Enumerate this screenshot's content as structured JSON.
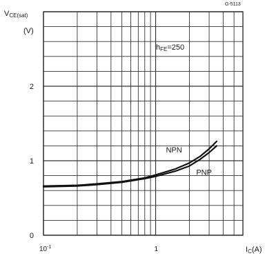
{
  "figure_id": "G-5113",
  "chart_data": {
    "type": "line",
    "ylabel": {
      "main": "V",
      "sub": "CE(sat)"
    },
    "ylabel_unit": "(V)",
    "xlabel": {
      "main": "I",
      "sub": "C",
      "unit": "(A)"
    },
    "x_scale": "log",
    "xlim": [
      0.1,
      6
    ],
    "ylim": [
      0,
      3
    ],
    "x_ticks": [
      {
        "value": 0.1,
        "label_main": "10",
        "label_exp": "-1"
      },
      {
        "value": 1,
        "label_main": "1",
        "label_exp": ""
      }
    ],
    "y_ticks": [
      {
        "value": 0,
        "label": "0"
      },
      {
        "value": 1,
        "label": "1"
      },
      {
        "value": 2,
        "label": "2"
      }
    ],
    "grid": true,
    "annotation": {
      "main": "h",
      "sub": "FE",
      "rest": "=250"
    },
    "series": [
      {
        "name": "NPN",
        "x": [
          0.1,
          0.2,
          0.3,
          0.5,
          0.8,
          1.0,
          1.5,
          2.0,
          2.5,
          3.0,
          3.5
        ],
        "y": [
          0.66,
          0.67,
          0.69,
          0.72,
          0.77,
          0.81,
          0.89,
          0.97,
          1.06,
          1.16,
          1.26
        ]
      },
      {
        "name": "PNP",
        "x": [
          0.1,
          0.2,
          0.3,
          0.5,
          0.8,
          1.0,
          1.5,
          2.0,
          2.5,
          3.0,
          3.5
        ],
        "y": [
          0.65,
          0.66,
          0.68,
          0.71,
          0.76,
          0.79,
          0.86,
          0.93,
          1.02,
          1.11,
          1.2
        ]
      }
    ]
  }
}
